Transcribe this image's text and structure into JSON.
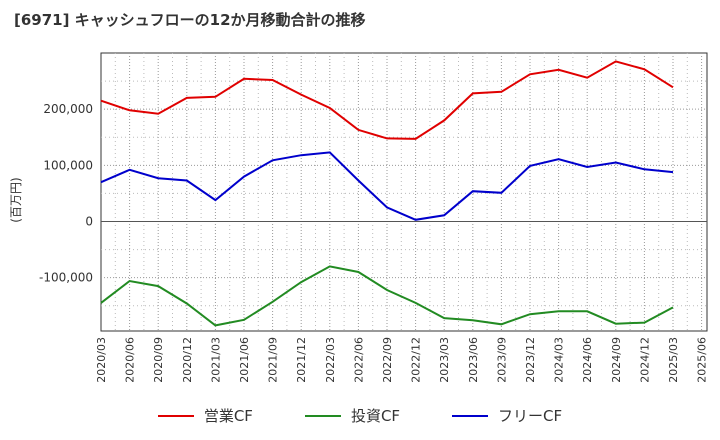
{
  "title": "[6971]  キャッシュフローの12か月移動合計の推移",
  "chart_data": {
    "type": "line",
    "ylabel": "(百万円)",
    "xlabel": "",
    "ylim": [
      -195000,
      300000
    ],
    "yticks": [
      -100000,
      0,
      100000,
      200000
    ],
    "ytick_labels": [
      "-100,000",
      "0",
      "100,000",
      "200,000"
    ],
    "categories": [
      "2020/03",
      "2020/06",
      "2020/09",
      "2020/12",
      "2021/03",
      "2021/06",
      "2021/09",
      "2021/12",
      "2022/03",
      "2022/06",
      "2022/09",
      "2022/12",
      "2023/03",
      "2023/06",
      "2023/09",
      "2023/12",
      "2024/03",
      "2024/06",
      "2024/09",
      "2024/12",
      "2025/03",
      "2025/06"
    ],
    "series": [
      {
        "name": "営業CF",
        "color": "#e00000",
        "values": [
          215000,
          198000,
          192000,
          220000,
          222000,
          254000,
          252000,
          226000,
          202000,
          163000,
          148000,
          147000,
          180000,
          228000,
          231000,
          262000,
          270000,
          256000,
          285000,
          271000,
          239000,
          null
        ]
      },
      {
        "name": "投資CF",
        "color": "#228b22",
        "values": [
          -145000,
          -106000,
          -115000,
          -146000,
          -185000,
          -175000,
          -143000,
          -108000,
          -80000,
          -90000,
          -122000,
          -145000,
          -172000,
          -176000,
          -183000,
          -165000,
          -160000,
          -160000,
          -182000,
          -180000,
          -153000,
          null
        ]
      },
      {
        "name": "フリーCF",
        "color": "#0000cc",
        "values": [
          70000,
          92000,
          77000,
          73000,
          38000,
          80000,
          109000,
          118000,
          123000,
          73000,
          25000,
          3000,
          11000,
          54000,
          51000,
          99000,
          111000,
          97000,
          105000,
          93000,
          88000,
          null
        ]
      }
    ],
    "grid": true,
    "legend_position": "bottom-center"
  }
}
